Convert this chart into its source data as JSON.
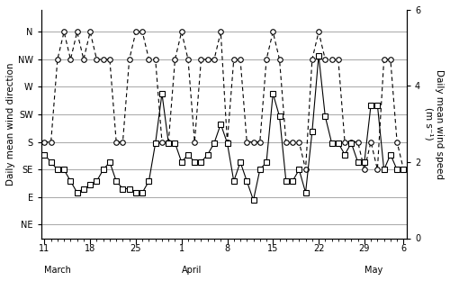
{
  "direction_labels": [
    "NE",
    "E",
    "SE",
    "S",
    "SW",
    "W",
    "NW",
    "N"
  ],
  "direction_values": [
    1,
    2,
    3,
    4,
    5,
    6,
    7,
    8
  ],
  "wind_direction_data": {
    "days": [
      0,
      1,
      2,
      3,
      4,
      5,
      6,
      7,
      8,
      9,
      10,
      11,
      12,
      13,
      14,
      15,
      16,
      17,
      18,
      19,
      20,
      21,
      22,
      23,
      24,
      25,
      26,
      27,
      28,
      29,
      30,
      31,
      32,
      33,
      34,
      35,
      36,
      37,
      38,
      39,
      40,
      41,
      42,
      43,
      44,
      45,
      46,
      47,
      48,
      49,
      50,
      51,
      52,
      53,
      54,
      55
    ],
    "values": [
      4,
      4,
      7,
      8,
      7,
      8,
      7,
      8,
      7,
      7,
      7,
      4,
      4,
      7,
      8,
      8,
      7,
      7,
      4,
      4,
      7,
      8,
      7,
      4,
      7,
      7,
      7,
      8,
      4,
      7,
      7,
      4,
      4,
      4,
      7,
      8,
      7,
      4,
      4,
      4,
      3,
      7,
      8,
      7,
      7,
      7,
      4,
      4,
      4,
      3,
      4,
      3,
      7,
      7,
      4,
      3
    ]
  },
  "wind_speed_data": {
    "days": [
      0,
      1,
      2,
      3,
      4,
      5,
      6,
      7,
      8,
      9,
      10,
      11,
      12,
      13,
      14,
      15,
      16,
      17,
      18,
      19,
      20,
      21,
      22,
      23,
      24,
      25,
      26,
      27,
      28,
      29,
      30,
      31,
      32,
      33,
      34,
      35,
      36,
      37,
      38,
      39,
      40,
      41,
      42,
      43,
      44,
      45,
      46,
      47,
      48,
      49,
      50,
      51,
      52,
      53,
      54,
      55
    ],
    "values": [
      2.2,
      2.0,
      1.8,
      1.8,
      1.5,
      1.2,
      1.3,
      1.4,
      1.5,
      1.8,
      2.0,
      1.5,
      1.3,
      1.3,
      1.2,
      1.2,
      1.5,
      2.5,
      3.8,
      2.5,
      2.5,
      2.0,
      2.2,
      2.0,
      2.0,
      2.2,
      2.5,
      3.0,
      2.5,
      1.5,
      2.0,
      1.5,
      1.0,
      1.8,
      2.0,
      3.8,
      3.2,
      1.5,
      1.5,
      1.8,
      1.2,
      2.8,
      4.8,
      3.2,
      2.5,
      2.5,
      2.2,
      2.5,
      2.0,
      2.0,
      3.5,
      3.5,
      1.8,
      2.2,
      1.8,
      1.8
    ]
  },
  "x_tick_days": [
    0,
    7,
    14,
    21,
    28,
    35,
    42,
    49,
    55
  ],
  "x_tick_labels": [
    "11",
    "18",
    "25",
    "1",
    "8",
    "15",
    "22",
    "29",
    "6"
  ],
  "ylim_left": [
    0.5,
    8.8
  ],
  "ylim_right": [
    0,
    6
  ],
  "ylabel_left": "Daily mean wind direction",
  "ylabel_right": "Daily mean wind speed\n(m s⁻¹)",
  "line_color": "#000000",
  "grid_color": "#999999"
}
